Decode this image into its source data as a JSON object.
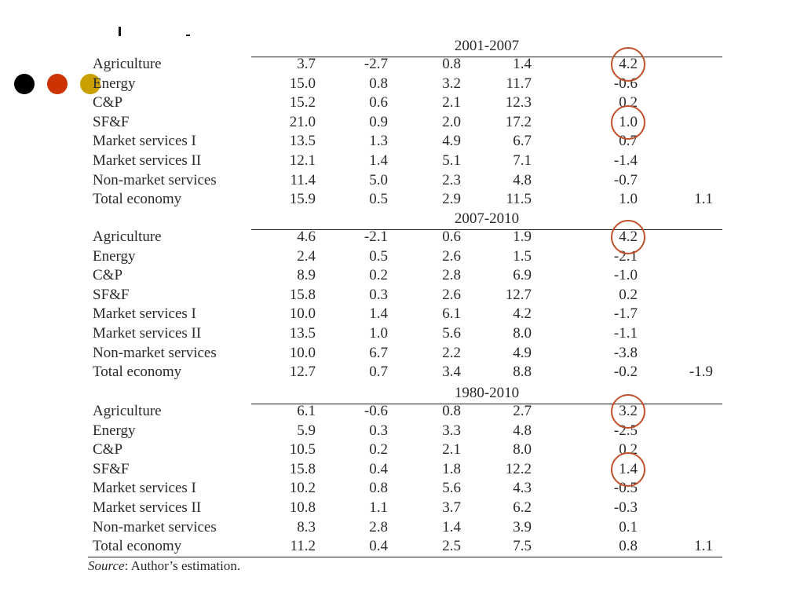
{
  "source": {
    "label": "Source",
    "text": ": Author’s estimation."
  },
  "bullet_colors": [
    "#000000",
    "#cc3300",
    "#c9a000"
  ],
  "highlight_color": "#c0502a",
  "table": {
    "panels": [
      {
        "period": "2001-2007",
        "rows": [
          {
            "label": "Agriculture",
            "values": [
              "3.7",
              "-2.7",
              "0.8",
              "1.4",
              "4.2",
              ""
            ]
          },
          {
            "label": "Energy",
            "values": [
              "15.0",
              "0.8",
              "3.2",
              "11.7",
              "-0.6",
              ""
            ]
          },
          {
            "label": "C&P",
            "values": [
              "15.2",
              "0.6",
              "2.1",
              "12.3",
              "0.2",
              ""
            ]
          },
          {
            "label": "SF&F",
            "values": [
              "21.0",
              "0.9",
              "2.0",
              "17.2",
              "1.0",
              ""
            ]
          },
          {
            "label": "Market services I",
            "values": [
              "13.5",
              "1.3",
              "4.9",
              "6.7",
              "0.7",
              ""
            ]
          },
          {
            "label": "Market services II",
            "values": [
              "12.1",
              "1.4",
              "5.1",
              "7.1",
              "-1.4",
              ""
            ]
          },
          {
            "label": "Non-market services",
            "values": [
              "11.4",
              "5.0",
              "2.3",
              "4.8",
              "-0.7",
              ""
            ]
          },
          {
            "label": "Total economy",
            "values": [
              "15.9",
              "0.5",
              "2.9",
              "11.5",
              "1.0",
              "1.1"
            ]
          }
        ]
      },
      {
        "period": "2007-2010",
        "rows": [
          {
            "label": "Agriculture",
            "values": [
              "4.6",
              "-2.1",
              "0.6",
              "1.9",
              "4.2",
              ""
            ]
          },
          {
            "label": "Energy",
            "values": [
              "2.4",
              "0.5",
              "2.6",
              "1.5",
              "-2.1",
              ""
            ]
          },
          {
            "label": "C&P",
            "values": [
              "8.9",
              "0.2",
              "2.8",
              "6.9",
              "-1.0",
              ""
            ]
          },
          {
            "label": "SF&F",
            "values": [
              "15.8",
              "0.3",
              "2.6",
              "12.7",
              "0.2",
              ""
            ]
          },
          {
            "label": "Market services I",
            "values": [
              "10.0",
              "1.4",
              "6.1",
              "4.2",
              "-1.7",
              ""
            ]
          },
          {
            "label": "Market services II",
            "values": [
              "13.5",
              "1.0",
              "5.6",
              "8.0",
              "-1.1",
              ""
            ]
          },
          {
            "label": "Non-market services",
            "values": [
              "10.0",
              "6.7",
              "2.2",
              "4.9",
              "-3.8",
              ""
            ]
          },
          {
            "label": "Total economy",
            "values": [
              "12.7",
              "0.7",
              "3.4",
              "8.8",
              "-0.2",
              "-1.9"
            ]
          }
        ]
      },
      {
        "period": "1980-2010",
        "rows": [
          {
            "label": "Agriculture",
            "values": [
              "6.1",
              "-0.6",
              "0.8",
              "2.7",
              "3.2",
              ""
            ]
          },
          {
            "label": "Energy",
            "values": [
              "5.9",
              "0.3",
              "3.3",
              "4.8",
              "-2.5",
              ""
            ]
          },
          {
            "label": "C&P",
            "values": [
              "10.5",
              "0.2",
              "2.1",
              "8.0",
              "0.2",
              ""
            ]
          },
          {
            "label": "SF&F",
            "values": [
              "15.8",
              "0.4",
              "1.8",
              "12.2",
              "1.4",
              ""
            ]
          },
          {
            "label": "Market services I",
            "values": [
              "10.2",
              "0.8",
              "5.6",
              "4.3",
              "-0.5",
              ""
            ]
          },
          {
            "label": "Market services II",
            "values": [
              "10.8",
              "1.1",
              "3.7",
              "6.2",
              "-0.3",
              ""
            ]
          },
          {
            "label": "Non-market services",
            "values": [
              "8.3",
              "2.8",
              "1.4",
              "3.9",
              "0.1",
              ""
            ]
          },
          {
            "label": "Total economy",
            "values": [
              "11.2",
              "0.4",
              "2.5",
              "7.5",
              "0.8",
              "1.1"
            ]
          }
        ]
      }
    ],
    "highlighted_cells": [
      {
        "panel": 0,
        "row": 0,
        "col": 4
      },
      {
        "panel": 0,
        "row": 3,
        "col": 4
      },
      {
        "panel": 1,
        "row": 0,
        "col": 4
      },
      {
        "panel": 2,
        "row": 0,
        "col": 4
      },
      {
        "panel": 2,
        "row": 3,
        "col": 4
      }
    ]
  }
}
